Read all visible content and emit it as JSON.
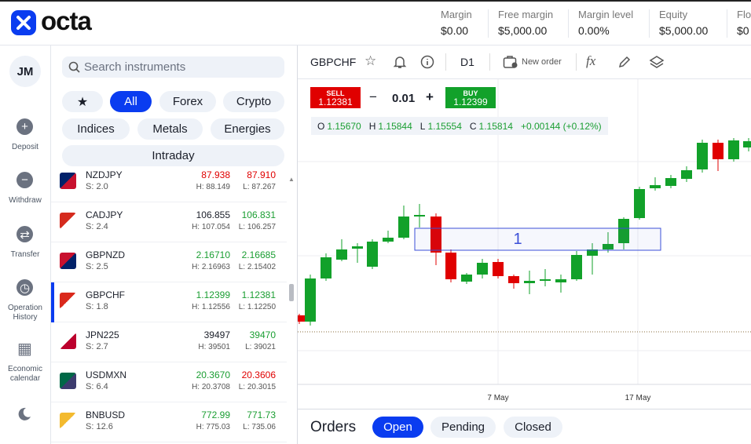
{
  "header": {
    "logo": "octa",
    "stats": [
      {
        "label": "Margin",
        "value": "$0.00"
      },
      {
        "label": "Free margin",
        "value": "$5,000.00"
      },
      {
        "label": "Margin level",
        "value": "0.00%"
      },
      {
        "label": "Equity",
        "value": "$5,000.00"
      },
      {
        "label": "Flo",
        "value": "$0"
      }
    ]
  },
  "sidebar": {
    "avatar": "JM",
    "items": [
      "Deposit",
      "Withdraw",
      "Transfer",
      "Operation History",
      "Economic calendar"
    ]
  },
  "instruments": {
    "search_placeholder": "Search instruments",
    "filters": [
      "All",
      "Forex",
      "Crypto",
      "Indices",
      "Metals",
      "Energies",
      "Intraday"
    ],
    "active_filter": "All",
    "rows": [
      {
        "symbol": "NZDJPY",
        "spread": "S: 2.0",
        "buy": "87.938",
        "sell": "87.910",
        "high": "H: 88.149",
        "low": "L: 87.267",
        "buy_color": "#e00000",
        "sell_color": "#e00000"
      },
      {
        "symbol": "CADJPY",
        "spread": "S: 2.4",
        "buy": "106.855",
        "sell": "106.831",
        "high": "H: 107.054",
        "low": "L: 106.257",
        "buy_color": "#1b1f2a",
        "sell_color": "#1a9e32"
      },
      {
        "symbol": "GBPNZD",
        "spread": "S: 2.5",
        "buy": "2.16710",
        "sell": "2.16685",
        "high": "H: 2.16963",
        "low": "L: 2.15402",
        "buy_color": "#1a9e32",
        "sell_color": "#1a9e32"
      },
      {
        "symbol": "GBPCHF",
        "spread": "S: 1.8",
        "buy": "1.12399",
        "sell": "1.12381",
        "high": "H: 1.12556",
        "low": "L: 1.12250",
        "buy_color": "#1a9e32",
        "sell_color": "#1a9e32"
      },
      {
        "symbol": "JPN225",
        "spread": "S: 2.7",
        "buy": "39497",
        "sell": "39470",
        "high": "H: 39501",
        "low": "L: 39021",
        "buy_color": "#1b1f2a",
        "sell_color": "#1a9e32"
      },
      {
        "symbol": "USDMXN",
        "spread": "S: 6.4",
        "buy": "20.3670",
        "sell": "20.3606",
        "high": "H: 20.3708",
        "low": "L: 20.3015",
        "buy_color": "#1a9e32",
        "sell_color": "#e00000"
      },
      {
        "symbol": "BNBUSD",
        "spread": "S: 12.6",
        "buy": "772.99",
        "sell": "771.73",
        "high": "H: 775.03",
        "low": "L: 735.06",
        "buy_color": "#1a9e32",
        "sell_color": "#1a9e32"
      }
    ],
    "selected": "GBPCHF"
  },
  "chart": {
    "symbol": "GBPCHF",
    "timeframe": "D1",
    "new_order": "New order",
    "sell_label": "SELL",
    "sell_price": "1.12381",
    "volume": "0.01",
    "buy_label": "BUY",
    "buy_price": "1.12399",
    "ohlc": [
      {
        "label": "O",
        "value": "1.15670"
      },
      {
        "label": "H",
        "value": "1.15844"
      },
      {
        "label": "L",
        "value": "1.15554"
      },
      {
        "label": "C",
        "value": "1.15814"
      }
    ],
    "change": "+0.00144 (+0.12%)",
    "x_labels": [
      "7 May",
      "17 May"
    ],
    "annotation": "1"
  },
  "orders": {
    "title": "Orders",
    "tabs": [
      "Open",
      "Pending",
      "Closed"
    ],
    "active_tab": "Open"
  }
}
